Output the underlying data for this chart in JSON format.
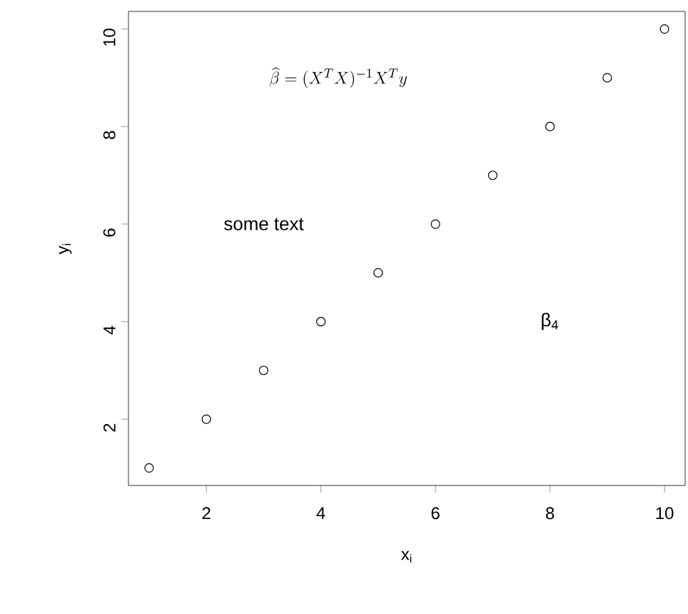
{
  "chart_data": {
    "type": "scatter",
    "x": [
      1,
      2,
      3,
      4,
      5,
      6,
      7,
      8,
      9,
      10
    ],
    "series": [
      {
        "color": "#000000",
        "values": [
          1,
          2,
          3,
          4,
          5,
          6,
          7,
          8,
          9,
          10
        ]
      }
    ],
    "xlim": [
      0.64,
      10.36
    ],
    "ylim": [
      0.64,
      10.36
    ],
    "xticks": [
      2,
      4,
      6,
      8,
      10
    ],
    "yticks": [
      2,
      4,
      6,
      8,
      10
    ],
    "xlabel": "x$_{i}$",
    "ylabel": "y$_{i}$",
    "marker": "circle",
    "grid": false,
    "annotations": [
      "\\widehat{\\beta} = (X^{T}X)^{-1}X^{T}y",
      "some text",
      "β$_{4}$"
    ]
  }
}
